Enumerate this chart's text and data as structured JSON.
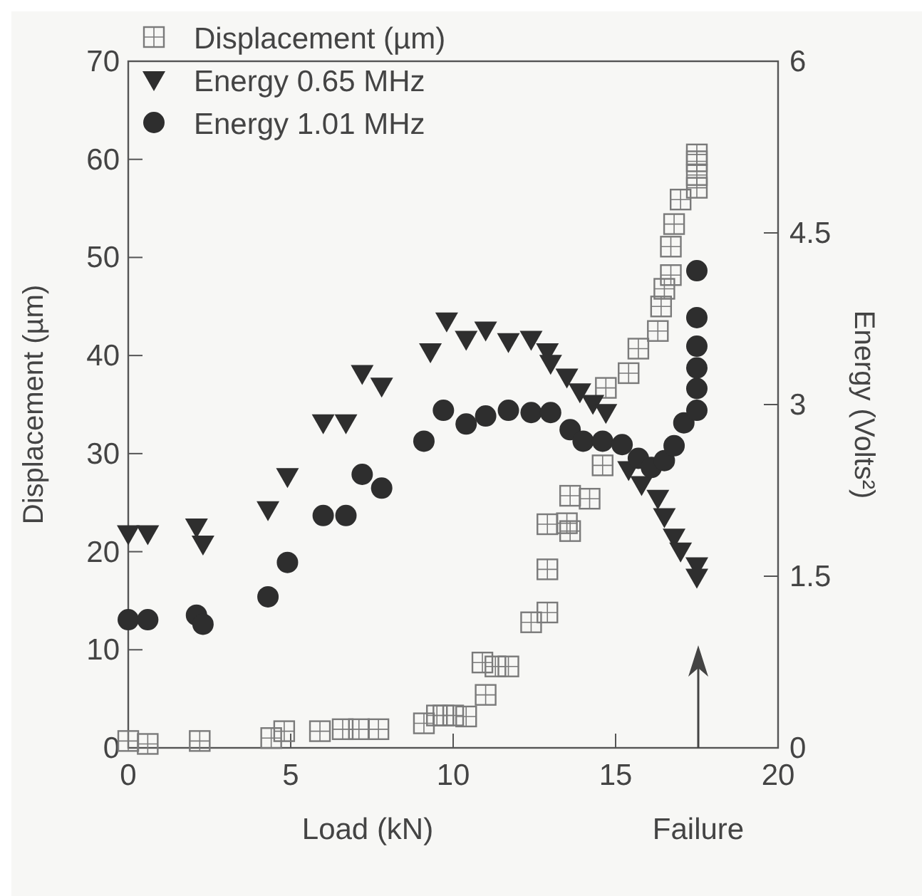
{
  "chart_data": {
    "type": "scatter",
    "xlabel": "Load (kN)",
    "ylabel": "Displacement (µm)",
    "y2label": "Energy (Volts²)",
    "xlim": [
      0,
      20
    ],
    "xticks": [
      0,
      5,
      10,
      15,
      20
    ],
    "ylim": [
      0,
      70
    ],
    "yticks": [
      0,
      10,
      20,
      30,
      40,
      50,
      60,
      70
    ],
    "y2lim": [
      0,
      6
    ],
    "y2ticks": [
      0,
      1.5,
      3,
      4.5,
      6
    ],
    "legend": "top left",
    "grid": false,
    "annotations": [
      "Failure"
    ],
    "series": [
      {
        "name": "Displacement (µm)",
        "color": "#7a7a7a",
        "marker": "square",
        "x": [
          0,
          0.6,
          2.2,
          4.4,
          4.8,
          5.9,
          6.6,
          7.1,
          7.7,
          9.1,
          9.5,
          9.7,
          10,
          10.4,
          11,
          10.9,
          11.3,
          11.7,
          12.4,
          12.9,
          12.9,
          12.9,
          13.5,
          13.6,
          13.6,
          14.2,
          14.6,
          14.7,
          15.4,
          15.7,
          16.3,
          16.4,
          16.5,
          16.7,
          16.7,
          16.8,
          17,
          17.5,
          17.5,
          17.5,
          17.5
        ],
        "values": [
          0.7,
          0.4,
          0.7,
          1,
          1.7,
          1.7,
          1.9,
          1.9,
          1.9,
          2.5,
          3.3,
          3.3,
          3.3,
          3.2,
          5.4,
          8.7,
          8.3,
          8.3,
          12.8,
          13.8,
          18.2,
          22.8,
          22.9,
          22.1,
          25.7,
          25.4,
          28.8,
          36.7,
          38.2,
          40.7,
          42.5,
          45,
          46.8,
          48.2,
          51.1,
          53.4,
          55.9,
          57.1,
          58.4,
          59.8,
          60.5
        ]
      },
      {
        "name": "Energy 0.65 MHz",
        "color": "#2e2e2e",
        "marker": "triangle",
        "axis": "y2",
        "x": [
          0,
          0.6,
          2.1,
          2.3,
          4.3,
          4.9,
          6,
          6.7,
          7.2,
          7.8,
          9.3,
          9.8,
          10.4,
          11,
          11.7,
          12.4,
          12.9,
          13,
          13.5,
          13.9,
          14.3,
          14.7,
          15.4,
          15.8,
          16.3,
          16.5,
          16.8,
          17,
          17.5,
          17.5
        ],
        "values": [
          1.87,
          1.87,
          1.93,
          1.78,
          2.08,
          2.37,
          2.84,
          2.84,
          3.27,
          3.16,
          3.46,
          3.73,
          3.57,
          3.65,
          3.55,
          3.57,
          3.46,
          3.36,
          3.24,
          3.11,
          3.01,
          2.93,
          2.43,
          2.3,
          2.18,
          2.02,
          1.84,
          1.72,
          1.59,
          1.49
        ]
      },
      {
        "name": "Energy 1.01 MHz",
        "color": "#2e2e2e",
        "marker": "circle",
        "axis": "y2",
        "x": [
          0,
          0.6,
          2.1,
          2.3,
          4.3,
          4.9,
          6,
          6.7,
          7.2,
          7.8,
          9.1,
          9.7,
          10.4,
          11,
          11.7,
          12.4,
          13,
          13.6,
          14,
          14.6,
          15.2,
          15.7,
          16.1,
          16.5,
          16.8,
          17.1,
          17.5,
          17.5,
          17.5,
          17.5,
          17.5,
          17.5
        ],
        "values": [
          1.12,
          1.12,
          1.16,
          1.08,
          1.32,
          1.62,
          2.03,
          2.03,
          2.39,
          2.27,
          2.68,
          2.95,
          2.83,
          2.9,
          2.95,
          2.93,
          2.93,
          2.78,
          2.68,
          2.68,
          2.65,
          2.53,
          2.45,
          2.51,
          2.64,
          2.84,
          2.95,
          3.14,
          3.32,
          3.51,
          3.76,
          4.17
        ]
      }
    ]
  }
}
